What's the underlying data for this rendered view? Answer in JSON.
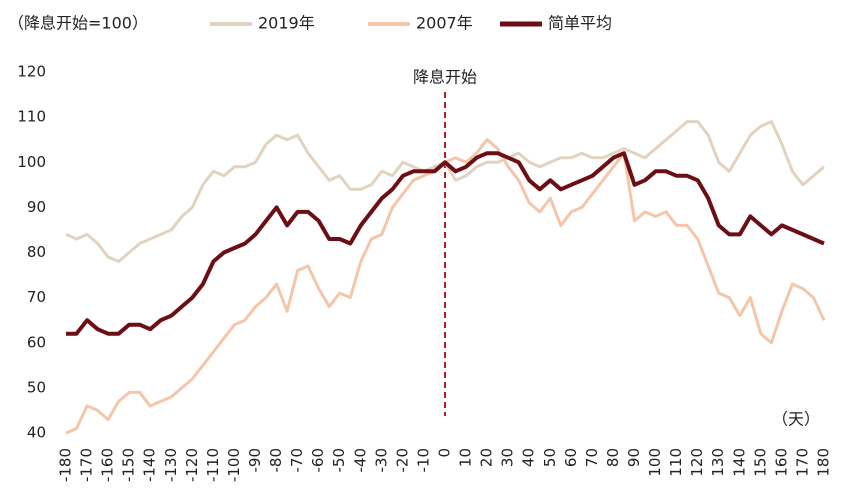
{
  "chart_data": {
    "type": "line",
    "legend_title": "（降息开始=100）",
    "annotation": "降息开始",
    "vline": 0,
    "x_unit": "（天）",
    "x": [
      -180,
      -175,
      -170,
      -165,
      -160,
      -155,
      -150,
      -145,
      -140,
      -135,
      -130,
      -125,
      -120,
      -115,
      -110,
      -105,
      -100,
      -95,
      -90,
      -85,
      -80,
      -75,
      -70,
      -65,
      -60,
      -55,
      -50,
      -45,
      -40,
      -35,
      -30,
      -25,
      -20,
      -15,
      -10,
      -5,
      0,
      5,
      10,
      15,
      20,
      25,
      30,
      35,
      40,
      45,
      50,
      55,
      60,
      65,
      70,
      75,
      80,
      85,
      90,
      95,
      100,
      105,
      110,
      115,
      120,
      125,
      130,
      135,
      140,
      145,
      150,
      155,
      160,
      165,
      170,
      175,
      180
    ],
    "series": [
      {
        "name": "2019年",
        "color": "#e2d3c0",
        "values": [
          84,
          83,
          84,
          82,
          79,
          78,
          80,
          82,
          83,
          84,
          85,
          88,
          90,
          95,
          98,
          97,
          99,
          99,
          100,
          104,
          106,
          105,
          106,
          102,
          99,
          96,
          97,
          94,
          94,
          95,
          98,
          97,
          100,
          99,
          98,
          99,
          100,
          96,
          97,
          99,
          100,
          100,
          101,
          102,
          100,
          99,
          100,
          101,
          101,
          102,
          101,
          101,
          102,
          103,
          102,
          101,
          103,
          105,
          107,
          109,
          109,
          106,
          100,
          98,
          102,
          106,
          108,
          109,
          104,
          98,
          95,
          97,
          99
        ]
      },
      {
        "name": "2007年",
        "color": "#f5c5a9",
        "values": [
          40,
          41,
          46,
          45,
          43,
          47,
          49,
          49,
          46,
          47,
          48,
          50,
          52,
          55,
          58,
          61,
          64,
          65,
          68,
          70,
          73,
          67,
          76,
          77,
          72,
          68,
          71,
          70,
          78,
          83,
          84,
          90,
          93,
          96,
          97,
          98,
          100,
          101,
          100,
          102,
          105,
          103,
          99,
          96,
          91,
          89,
          92,
          86,
          89,
          90,
          93,
          96,
          99,
          102,
          87,
          89,
          88,
          89,
          86,
          86,
          83,
          77,
          71,
          70,
          66,
          70,
          62,
          60,
          67,
          73,
          72,
          70,
          65
        ]
      },
      {
        "name": "简单平均",
        "color": "#6b0f14",
        "values": [
          62,
          62,
          65,
          63,
          62,
          62,
          64,
          64,
          63,
          65,
          66,
          68,
          70,
          73,
          78,
          80,
          81,
          82,
          84,
          87,
          90,
          86,
          89,
          89,
          87,
          83,
          83,
          82,
          86,
          89,
          92,
          94,
          97,
          98,
          98,
          98,
          100,
          98,
          99,
          101,
          102,
          102,
          101,
          100,
          96,
          94,
          96,
          94,
          95,
          96,
          97,
          99,
          101,
          102,
          95,
          96,
          98,
          98,
          97,
          97,
          96,
          92,
          86,
          84,
          84,
          88,
          86,
          84,
          86,
          85,
          84,
          83,
          82
        ]
      }
    ],
    "xlim": [
      -180,
      180
    ],
    "xticks": [
      -180,
      -170,
      -160,
      -150,
      -140,
      -130,
      -120,
      -110,
      -100,
      -90,
      -80,
      -70,
      -60,
      -50,
      -40,
      -30,
      -20,
      -10,
      0,
      10,
      20,
      30,
      40,
      50,
      60,
      70,
      80,
      90,
      100,
      110,
      120,
      130,
      140,
      150,
      160,
      170,
      180
    ],
    "ylim": [
      40,
      120
    ],
    "yticks": [
      40,
      50,
      60,
      70,
      80,
      90,
      100,
      110,
      120
    ]
  }
}
